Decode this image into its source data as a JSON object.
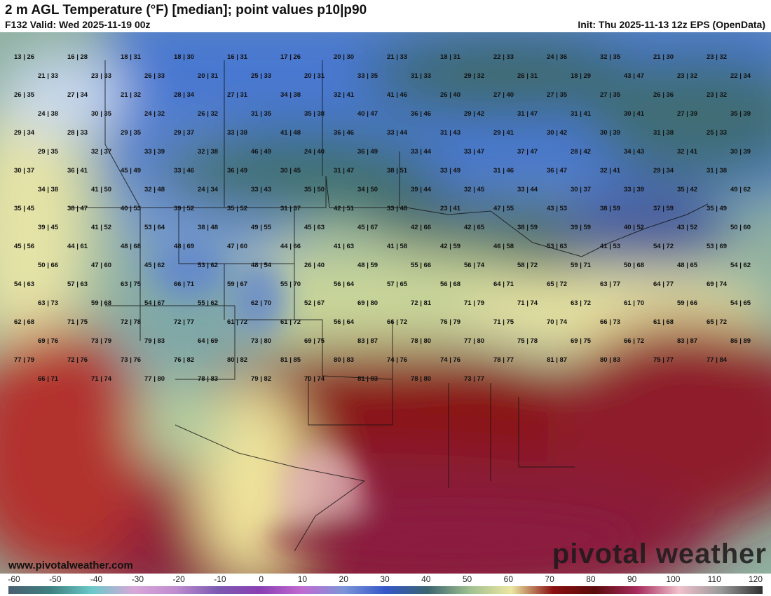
{
  "header": {
    "title": "2 m AGL Temperature (°F) [median]; point values p10|p90",
    "valid": "F132 Valid: Wed 2025-11-19 00z",
    "init": "Init: Thu 2025-11-13 12z EPS (OpenData)"
  },
  "watermark": {
    "site": "www.pivotalweather.com",
    "brand": "pivotal weather"
  },
  "colorbar": {
    "ticks": [
      "-60",
      "-50",
      "-40",
      "-30",
      "-20",
      "-10",
      "0",
      "10",
      "20",
      "30",
      "40",
      "50",
      "60",
      "70",
      "80",
      "90",
      "100",
      "110",
      "120"
    ],
    "colors": [
      "#4a5f72",
      "#3f8080",
      "#6cc9c9",
      "#d9a7d9",
      "#bf8ccf",
      "#7b5ab0",
      "#8a3fb4",
      "#c06ad0",
      "#7d95d8",
      "#3557c8",
      "#3a6470",
      "#9fbf8f",
      "#ece7a3",
      "#8a1010",
      "#5a0b0b",
      "#a72b5c",
      "#f1c1cc",
      "#9a9a9a",
      "#303030"
    ]
  },
  "points": [
    "13|26",
    "16|28",
    "18|31",
    "18|30",
    "16|31",
    "17|26",
    "20|30",
    "21|33",
    "18|31",
    "22|33",
    "24|36",
    "32|35",
    "21|30",
    "23|32",
    "21|33",
    "23|33",
    "26|33",
    "20|31",
    "25|33",
    "20|31",
    "33|35",
    "31|33",
    "29|32",
    "26|31",
    "18|29",
    "43|47",
    "23|32",
    "22|34",
    "26|35",
    "27|34",
    "21|32",
    "28|34",
    "27|31",
    "34|38",
    "32|41",
    "41|46",
    "26|40",
    "27|40",
    "27|35",
    "27|35",
    "26|36",
    "23|32",
    "24|38",
    "30|35",
    "24|32",
    "26|32",
    "31|35",
    "35|38",
    "40|47",
    "36|46",
    "29|42",
    "31|47",
    "31|41",
    "30|41",
    "27|39",
    "35|39",
    "29|34",
    "28|33",
    "29|35",
    "29|37",
    "33|38",
    "41|48",
    "36|46",
    "33|44",
    "31|43",
    "29|41",
    "30|42",
    "30|39",
    "31|38",
    "25|33",
    "29|35",
    "32|37",
    "33|39",
    "32|38",
    "46|49",
    "24|40",
    "36|49",
    "33|44",
    "33|47",
    "37|47",
    "28|42",
    "34|43",
    "32|41",
    "30|39",
    "30|37",
    "36|41",
    "45|49",
    "33|46",
    "36|49",
    "30|45",
    "31|47",
    "38|51",
    "33|49",
    "31|46",
    "36|47",
    "32|41",
    "29|34",
    "31|38",
    "34|38",
    "41|50",
    "32|48",
    "24|34",
    "33|43",
    "35|50",
    "34|50",
    "39|44",
    "32|45",
    "33|44",
    "30|37",
    "33|39",
    "35|42",
    "49|62",
    "35|45",
    "38|47",
    "40|53",
    "39|52",
    "35|52",
    "31|37",
    "42|51",
    "33|48",
    "23|41",
    "47|55",
    "43|53",
    "38|59",
    "37|59",
    "35|49",
    "39|45",
    "41|52",
    "53|64",
    "38|48",
    "49|55",
    "45|63",
    "45|67",
    "42|66",
    "42|65",
    "38|59",
    "39|59",
    "40|52",
    "43|52",
    "50|60",
    "45|56",
    "44|61",
    "48|68",
    "48|69",
    "47|60",
    "44|66",
    "41|63",
    "41|58",
    "42|59",
    "46|58",
    "53|63",
    "41|53",
    "54|72",
    "53|69",
    "50|66",
    "47|60",
    "45|62",
    "53|62",
    "48|54",
    "26|40",
    "48|59",
    "55|66",
    "56|74",
    "58|72",
    "59|71",
    "50|68",
    "48|65",
    "54|62",
    "54|63",
    "57|63",
    "63|75",
    "66|71",
    "59|67",
    "55|70",
    "56|64",
    "57|65",
    "56|68",
    "64|71",
    "65|72",
    "63|77",
    "64|77",
    "69|74",
    "63|73",
    "59|68",
    "54|67",
    "55|62",
    "62|70",
    "52|67",
    "69|80",
    "72|81",
    "71|79",
    "71|74",
    "63|72",
    "61|70",
    "59|66",
    "54|65",
    "62|68",
    "71|75",
    "72|78",
    "72|77",
    "61|72",
    "61|72",
    "56|64",
    "66|72",
    "76|79",
    "71|75",
    "70|74",
    "66|73",
    "61|68",
    "65|72",
    "69|76",
    "73|79",
    "79|83",
    "64|69",
    "73|80",
    "69|75",
    "83|87",
    "78|80",
    "77|80",
    "75|78",
    "69|75",
    "66|72",
    "83|87",
    "86|89",
    "77|79",
    "72|76",
    "73|76",
    "76|82",
    "80|82",
    "81|85",
    "80|83",
    "74|76",
    "74|76",
    "78|77",
    "81|87",
    "80|83",
    "75|77",
    "77|84",
    "66|71",
    "71|74",
    "77|80",
    "78|83",
    "79|82",
    "70|74",
    "81|83",
    "78|80",
    "73|77"
  ]
}
